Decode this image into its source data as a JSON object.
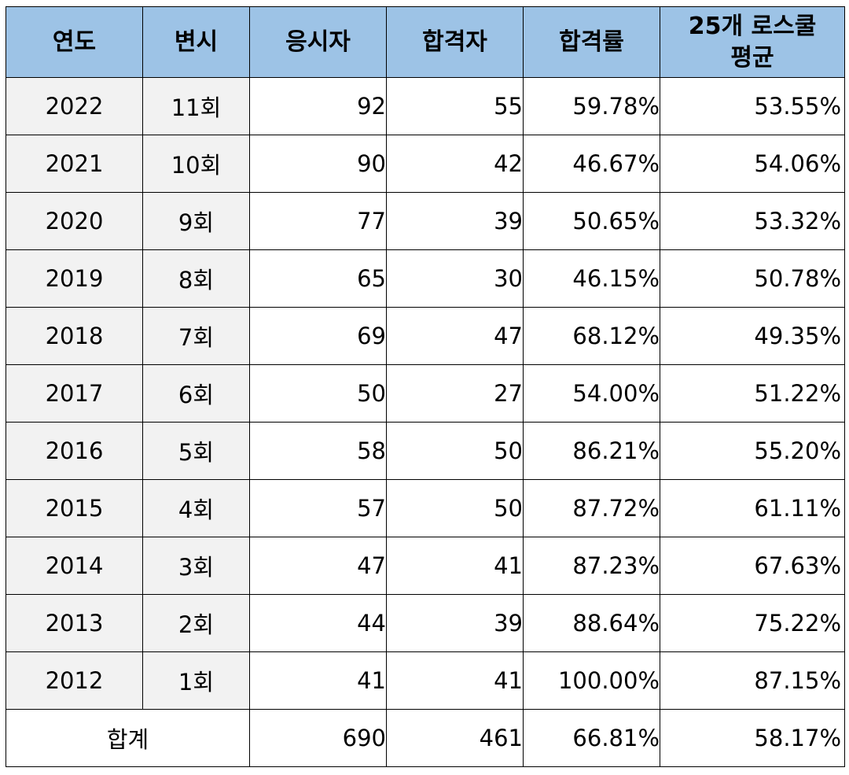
{
  "headers": {
    "year": "연도",
    "round": "변시",
    "applicants": "응시자",
    "passers": "합격자",
    "pass_rate": "합격률",
    "avg_line1": "25개 로스쿨",
    "avg_line2": "평균"
  },
  "rows": [
    {
      "year": "2022",
      "round": "11회",
      "applicants": "92",
      "passers": "55",
      "pass_rate": "59.78%",
      "avg": "53.55%"
    },
    {
      "year": "2021",
      "round": "10회",
      "applicants": "90",
      "passers": "42",
      "pass_rate": "46.67%",
      "avg": "54.06%"
    },
    {
      "year": "2020",
      "round": "9회",
      "applicants": "77",
      "passers": "39",
      "pass_rate": "50.65%",
      "avg": "53.32%"
    },
    {
      "year": "2019",
      "round": "8회",
      "applicants": "65",
      "passers": "30",
      "pass_rate": "46.15%",
      "avg": "50.78%"
    },
    {
      "year": "2018",
      "round": "7회",
      "applicants": "69",
      "passers": "47",
      "pass_rate": "68.12%",
      "avg": "49.35%"
    },
    {
      "year": "2017",
      "round": "6회",
      "applicants": "50",
      "passers": "27",
      "pass_rate": "54.00%",
      "avg": "51.22%"
    },
    {
      "year": "2016",
      "round": "5회",
      "applicants": "58",
      "passers": "50",
      "pass_rate": "86.21%",
      "avg": "55.20%"
    },
    {
      "year": "2015",
      "round": "4회",
      "applicants": "57",
      "passers": "50",
      "pass_rate": "87.72%",
      "avg": "61.11%"
    },
    {
      "year": "2014",
      "round": "3회",
      "applicants": "47",
      "passers": "41",
      "pass_rate": "87.23%",
      "avg": "67.63%"
    },
    {
      "year": "2013",
      "round": "2회",
      "applicants": "44",
      "passers": "39",
      "pass_rate": "88.64%",
      "avg": "75.22%"
    },
    {
      "year": "2012",
      "round": "1회",
      "applicants": "41",
      "passers": "41",
      "pass_rate": "100.00%",
      "avg": "87.15%"
    }
  ],
  "total": {
    "label": "합계",
    "applicants": "690",
    "passers": "461",
    "pass_rate": "66.81%",
    "avg": "58.17%"
  },
  "colors": {
    "header_bg": "#9dc3e6",
    "label_bg": "#f2f2f2",
    "border": "#000000"
  }
}
